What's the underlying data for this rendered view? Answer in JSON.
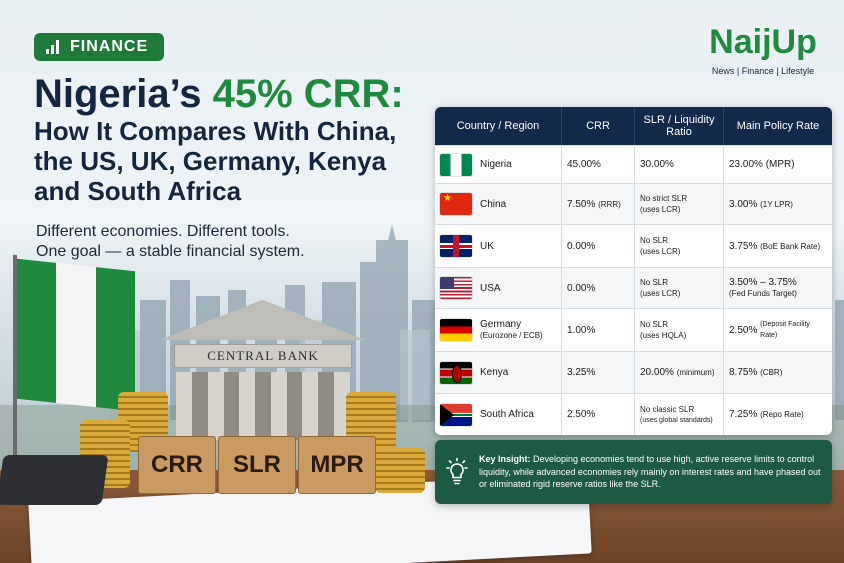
{
  "badge": {
    "label": "FINANCE",
    "icon": "bar-chart-icon"
  },
  "title": {
    "line1_prefix": "Nigeria’s ",
    "line1_highlight": "45% CRR:",
    "line2": "How It Compares With China,",
    "line3": "the US, UK, Germany, Kenya",
    "line4": "and South Africa"
  },
  "subtitle": {
    "line1": "Different economies. Different tools.",
    "line2": "One goal — a stable financial system."
  },
  "logo": {
    "name": "NaijUp",
    "tagline": "News | Finance | Lifestyle"
  },
  "illustration": {
    "bank_sign": "CENTRAL BANK",
    "blocks": [
      "CRR",
      "SLR",
      "MPR"
    ]
  },
  "table": {
    "headers": [
      "Country / Region",
      "CRR",
      "SLR / Liquidity Ratio",
      "Main Policy Rate"
    ],
    "rows": [
      {
        "flag": "nigeria-flag-icon",
        "country": "Nigeria",
        "country_note": "",
        "crr": "45.00%",
        "crr_note": "",
        "slr": "30.00%",
        "slr_note": "",
        "rate": "23.00% (MPR)",
        "rate_note": ""
      },
      {
        "flag": "china-flag-icon",
        "country": "China",
        "country_note": "",
        "crr": "7.50%",
        "crr_note": "(RRR)",
        "slr": "No strict SLR",
        "slr_note": "(uses LCR)",
        "rate": "3.00%",
        "rate_note": "(1Y LPR)"
      },
      {
        "flag": "uk-flag-icon",
        "country": "UK",
        "country_note": "",
        "crr": "0.00%",
        "crr_note": "",
        "slr": "No SLR",
        "slr_note": "(uses LCR)",
        "rate": "3.75%",
        "rate_note": "(BoE Bank Rate)"
      },
      {
        "flag": "usa-flag-icon",
        "country": "USA",
        "country_note": "",
        "crr": "0.00%",
        "crr_note": "",
        "slr": "No SLR",
        "slr_note": "(uses LCR)",
        "rate": "3.50% – 3.75%",
        "rate_note": "(Fed Funds Target)"
      },
      {
        "flag": "germany-flag-icon",
        "country": "Germany",
        "country_note": "(Eurozone / ECB)",
        "crr": "1.00%",
        "crr_note": "",
        "slr": "No SLR",
        "slr_note": "(uses HQLA)",
        "rate": "2.50%",
        "rate_note": "(Deposit Facility Rate)"
      },
      {
        "flag": "kenya-flag-icon",
        "country": "Kenya",
        "country_note": "",
        "crr": "3.25%",
        "crr_note": "",
        "slr": "20.00%",
        "slr_note": "(minimum)",
        "rate": "8.75%",
        "rate_note": "(CBR)"
      },
      {
        "flag": "south-africa-flag-icon",
        "country": "South Africa",
        "country_note": "",
        "crr": "2.50%",
        "crr_note": "",
        "slr": "No classic SLR",
        "slr_note": "(uses global standards)",
        "rate": "7.25%",
        "rate_note": "(Repo Rate)"
      }
    ]
  },
  "insight": {
    "icon": "lightbulb-icon",
    "label": "Key Insight:",
    "text": " Developing economies tend to use high, active reserve limits to control liquidity, while advanced economies rely mainly on interest rates and have phased out or eliminated rigid reserve ratios like the SLR."
  },
  "colors": {
    "accent_green": "#1f8a3d",
    "navy": "#13294a",
    "insight_bg": "#1d5a43"
  }
}
